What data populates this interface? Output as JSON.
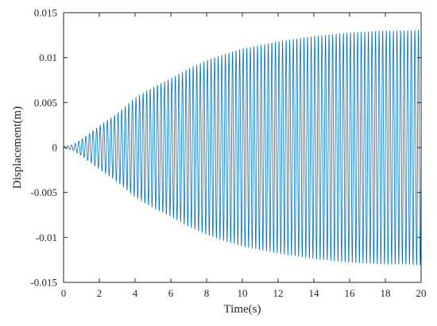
{
  "chart_data": {
    "type": "line",
    "title": "",
    "xlabel": "Time(s)",
    "ylabel": "Displacement(m)",
    "xlim": [
      0,
      20
    ],
    "ylim": [
      -0.015,
      0.015
    ],
    "x_ticks": [
      0,
      2,
      4,
      6,
      8,
      10,
      12,
      14,
      16,
      18,
      20
    ],
    "y_ticks": [
      -0.015,
      -0.01,
      -0.005,
      0,
      0.005,
      0.01,
      0.015
    ],
    "x_tick_labels": [
      "0",
      "2",
      "4",
      "6",
      "8",
      "10",
      "12",
      "14",
      "16",
      "18",
      "20"
    ],
    "y_tick_labels": [
      "-0.015",
      "-0.01",
      "-0.005",
      "0",
      "0.005",
      "0.01",
      "0.015"
    ],
    "grid": false,
    "legend": "none",
    "series": [
      {
        "color": "#0072BD",
        "frequency_hz": 5,
        "envelope": {
          "t": [
            0,
            0.5,
            1,
            2,
            3,
            4,
            5,
            6,
            7,
            8,
            9,
            10,
            11,
            12,
            13,
            14,
            15,
            16,
            17,
            18,
            19,
            20
          ],
          "amplitude": [
            0.0001,
            0.0003,
            0.0009,
            0.0024,
            0.0038,
            0.0055,
            0.0067,
            0.0077,
            0.0088,
            0.0097,
            0.0104,
            0.011,
            0.0114,
            0.0118,
            0.0121,
            0.0124,
            0.0126,
            0.0128,
            0.0129,
            0.013,
            0.013,
            0.0131
          ]
        }
      }
    ]
  }
}
